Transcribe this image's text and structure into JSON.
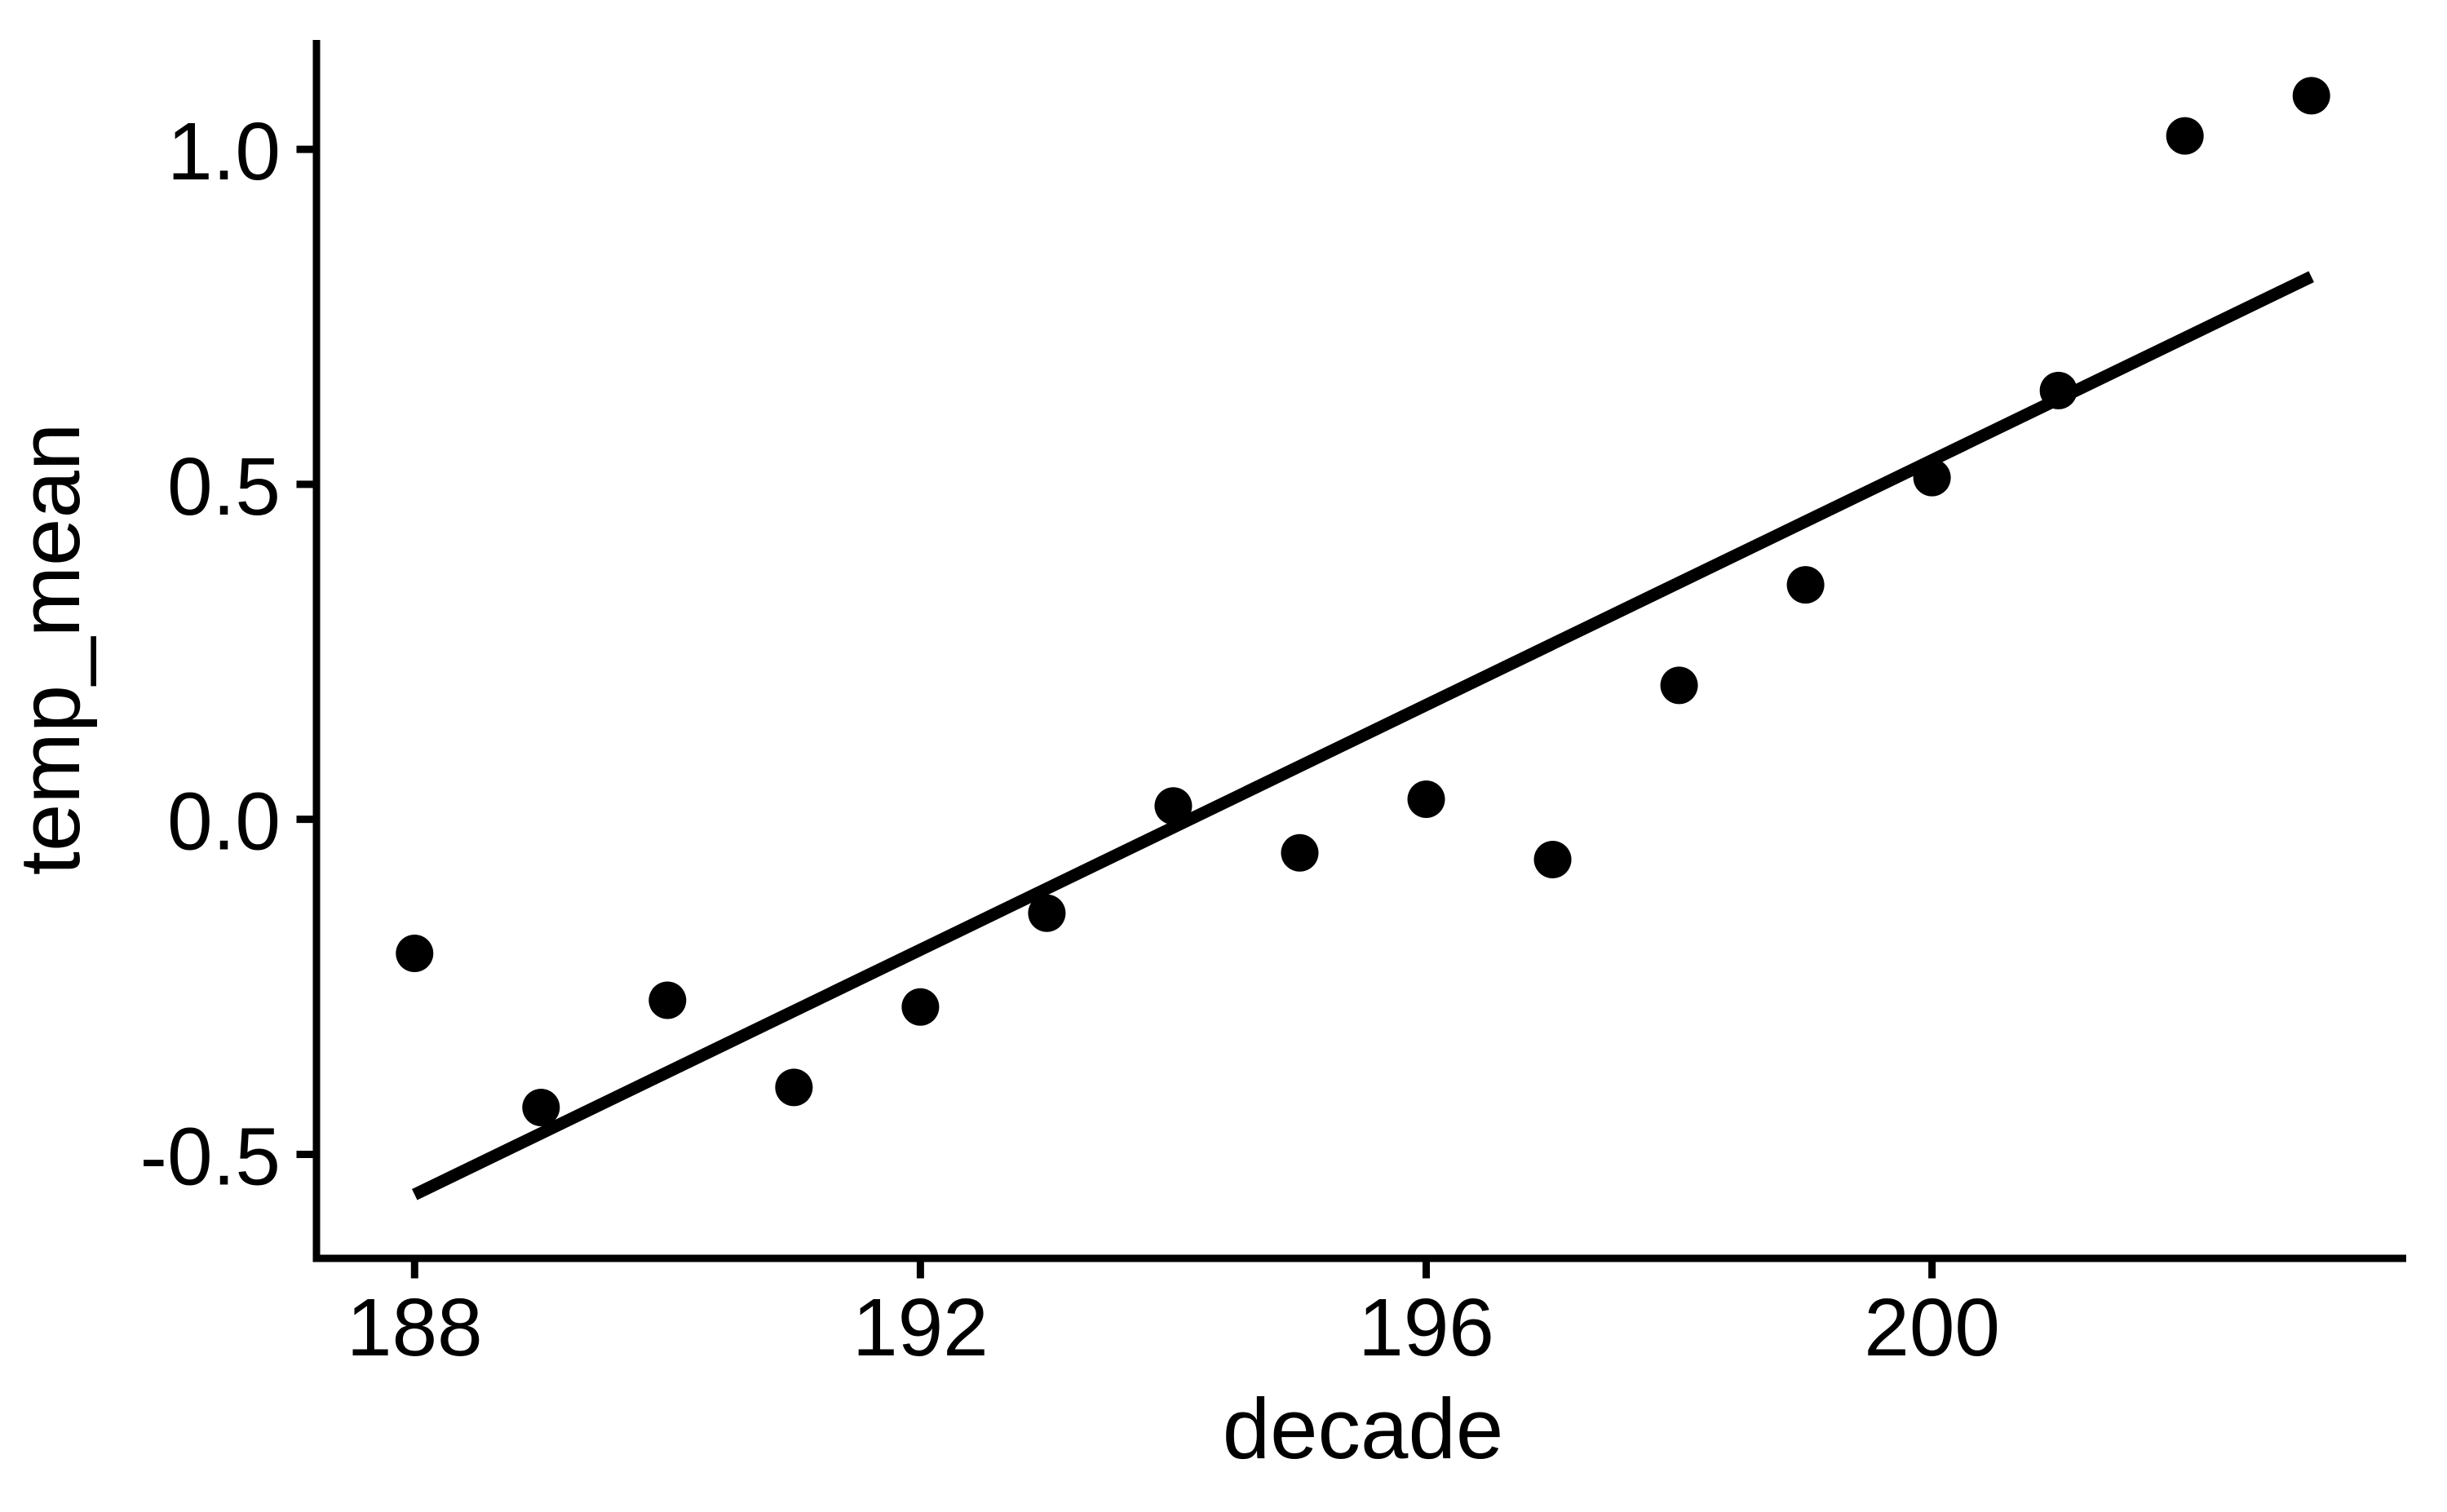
{
  "page": {
    "background": "#FFFFFF"
  },
  "chart_data": {
    "type": "scatter",
    "title": "",
    "xlabel": "decade",
    "ylabel": "temp_mean",
    "legend": "none",
    "grid": "off",
    "theme": "classic-black-on-white",
    "xlim": [
      187.25,
      203.75
    ],
    "ylim": [
      -0.654,
      1.162
    ],
    "x_ticks": [
      {
        "value": 188,
        "label": "188"
      },
      {
        "value": 192,
        "label": "192"
      },
      {
        "value": 196,
        "label": "196"
      },
      {
        "value": 200,
        "label": "200"
      }
    ],
    "y_ticks": [
      {
        "value": 1.0,
        "label": "1.0"
      },
      {
        "value": 0.5,
        "label": "0.5"
      },
      {
        "value": 0.0,
        "label": "0.0"
      },
      {
        "value": -0.5,
        "label": "-0.5"
      }
    ],
    "points": [
      {
        "x": 188,
        "y": -0.2
      },
      {
        "x": 189,
        "y": -0.43
      },
      {
        "x": 190,
        "y": -0.27
      },
      {
        "x": 191,
        "y": -0.4
      },
      {
        "x": 192,
        "y": -0.28
      },
      {
        "x": 193,
        "y": -0.14
      },
      {
        "x": 194,
        "y": 0.02
      },
      {
        "x": 195,
        "y": -0.05
      },
      {
        "x": 196,
        "y": 0.03
      },
      {
        "x": 197,
        "y": -0.06
      },
      {
        "x": 198,
        "y": 0.2
      },
      {
        "x": 199,
        "y": 0.35
      },
      {
        "x": 200,
        "y": 0.51
      },
      {
        "x": 201,
        "y": 0.64
      },
      {
        "x": 202,
        "y": 1.02
      },
      {
        "x": 203,
        "y": 1.08
      }
    ],
    "trend_line": {
      "type": "linear_fit",
      "x1": 188,
      "y1": -0.56,
      "x2": 203,
      "y2": 0.81
    },
    "styles": {
      "point_color": "#000000",
      "trend_line_color": "#000000",
      "axis_color": "#000000",
      "text_color": "#000000",
      "background": "#FFFFFF"
    }
  }
}
